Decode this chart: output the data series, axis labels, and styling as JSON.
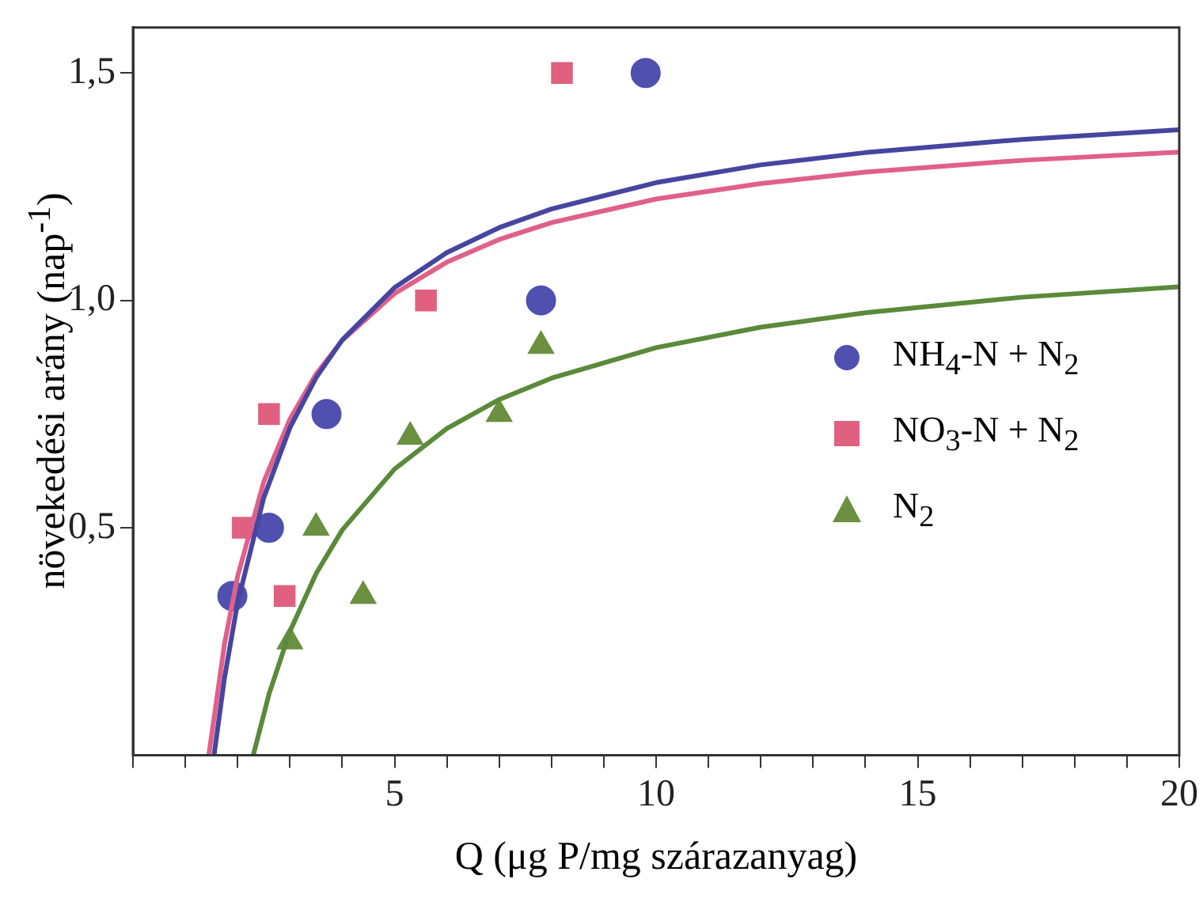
{
  "chart_data": {
    "type": "scatter",
    "xlabel": "Q  (μg P/mg szárazanyag)",
    "ylabel": "növekedési arány (nap$^{-1}$)",
    "xlim": [
      0,
      20
    ],
    "ylim": [
      0,
      1.6
    ],
    "xticks": [
      {
        "value": 0,
        "label": null
      },
      {
        "value": 1,
        "label": null
      },
      {
        "value": 2,
        "label": null
      },
      {
        "value": 3,
        "label": null
      },
      {
        "value": 4,
        "label": null
      },
      5,
      {
        "value": 6,
        "label": null
      },
      {
        "value": 7,
        "label": null
      },
      {
        "value": 8,
        "label": null
      },
      {
        "value": 9,
        "label": null
      },
      10,
      {
        "value": 11,
        "label": null
      },
      {
        "value": 12,
        "label": null
      },
      {
        "value": 13,
        "label": null
      },
      {
        "value": 14,
        "label": null
      },
      15,
      {
        "value": 16,
        "label": null
      },
      {
        "value": 17,
        "label": null
      },
      {
        "value": 18,
        "label": null
      },
      {
        "value": 19,
        "label": null
      },
      20
    ],
    "yticks": [
      {
        "value": 0.5,
        "label": "0,5"
      },
      {
        "value": 1.0,
        "label": "1,0"
      },
      {
        "value": 1.5,
        "label": "1,5"
      }
    ],
    "grid": false,
    "legend": "right",
    "series": [
      {
        "type": "line",
        "color": "#4646a0",
        "marker": "none",
        "x": [
          1.55,
          1.75,
          2,
          2.5,
          3,
          3.5,
          4,
          5,
          6,
          7,
          8,
          10,
          12,
          14,
          17,
          20
        ],
        "values": [
          0,
          0.17,
          0.335,
          0.566,
          0.72,
          0.83,
          0.913,
          1.028,
          1.105,
          1.16,
          1.201,
          1.259,
          1.298,
          1.325,
          1.354,
          1.375
        ]
      },
      {
        "type": "line",
        "color": "#e0608a",
        "marker": "none",
        "x": [
          1.45,
          1.75,
          2,
          2.5,
          3,
          3.5,
          4,
          5,
          6,
          7,
          8,
          10,
          12,
          14,
          17,
          20
        ],
        "values": [
          0,
          0.245,
          0.393,
          0.601,
          0.739,
          0.838,
          0.912,
          1.015,
          1.084,
          1.134,
          1.171,
          1.223,
          1.257,
          1.282,
          1.308,
          1.326
        ]
      },
      {
        "type": "line",
        "color": "#5a8a3a",
        "marker": "none",
        "x": [
          2.3,
          2.6,
          3,
          3.5,
          4,
          5,
          6,
          7,
          8,
          10,
          12,
          14,
          17,
          20
        ],
        "values": [
          0,
          0.134,
          0.272,
          0.399,
          0.495,
          0.629,
          0.718,
          0.782,
          0.829,
          0.896,
          0.941,
          0.973,
          1.007,
          1.03
        ]
      },
      {
        "type": "scatter",
        "name": "NH$_{4}$-N + N$_{2}$",
        "color": "#5050b0",
        "marker": "circle",
        "x": [
          1.9,
          2.6,
          3.7,
          7.8,
          9.8
        ],
        "values": [
          0.35,
          0.5,
          0.75,
          1.0,
          1.5
        ]
      },
      {
        "type": "scatter",
        "name": "NO$_{3}$-N + N$_{2}$",
        "color": "#e06080",
        "marker": "square",
        "x": [
          2.1,
          2.6,
          2.9,
          5.6,
          8.2
        ],
        "values": [
          0.5,
          0.75,
          0.35,
          1.0,
          1.5
        ]
      },
      {
        "type": "scatter",
        "name": "N$_{2}$",
        "color": "#6a9040",
        "marker": "triangle",
        "x": [
          3.0,
          3.5,
          4.4,
          5.3,
          7.0,
          7.8
        ],
        "values": [
          0.25,
          0.5,
          0.35,
          0.7,
          0.75,
          0.9
        ]
      }
    ]
  }
}
